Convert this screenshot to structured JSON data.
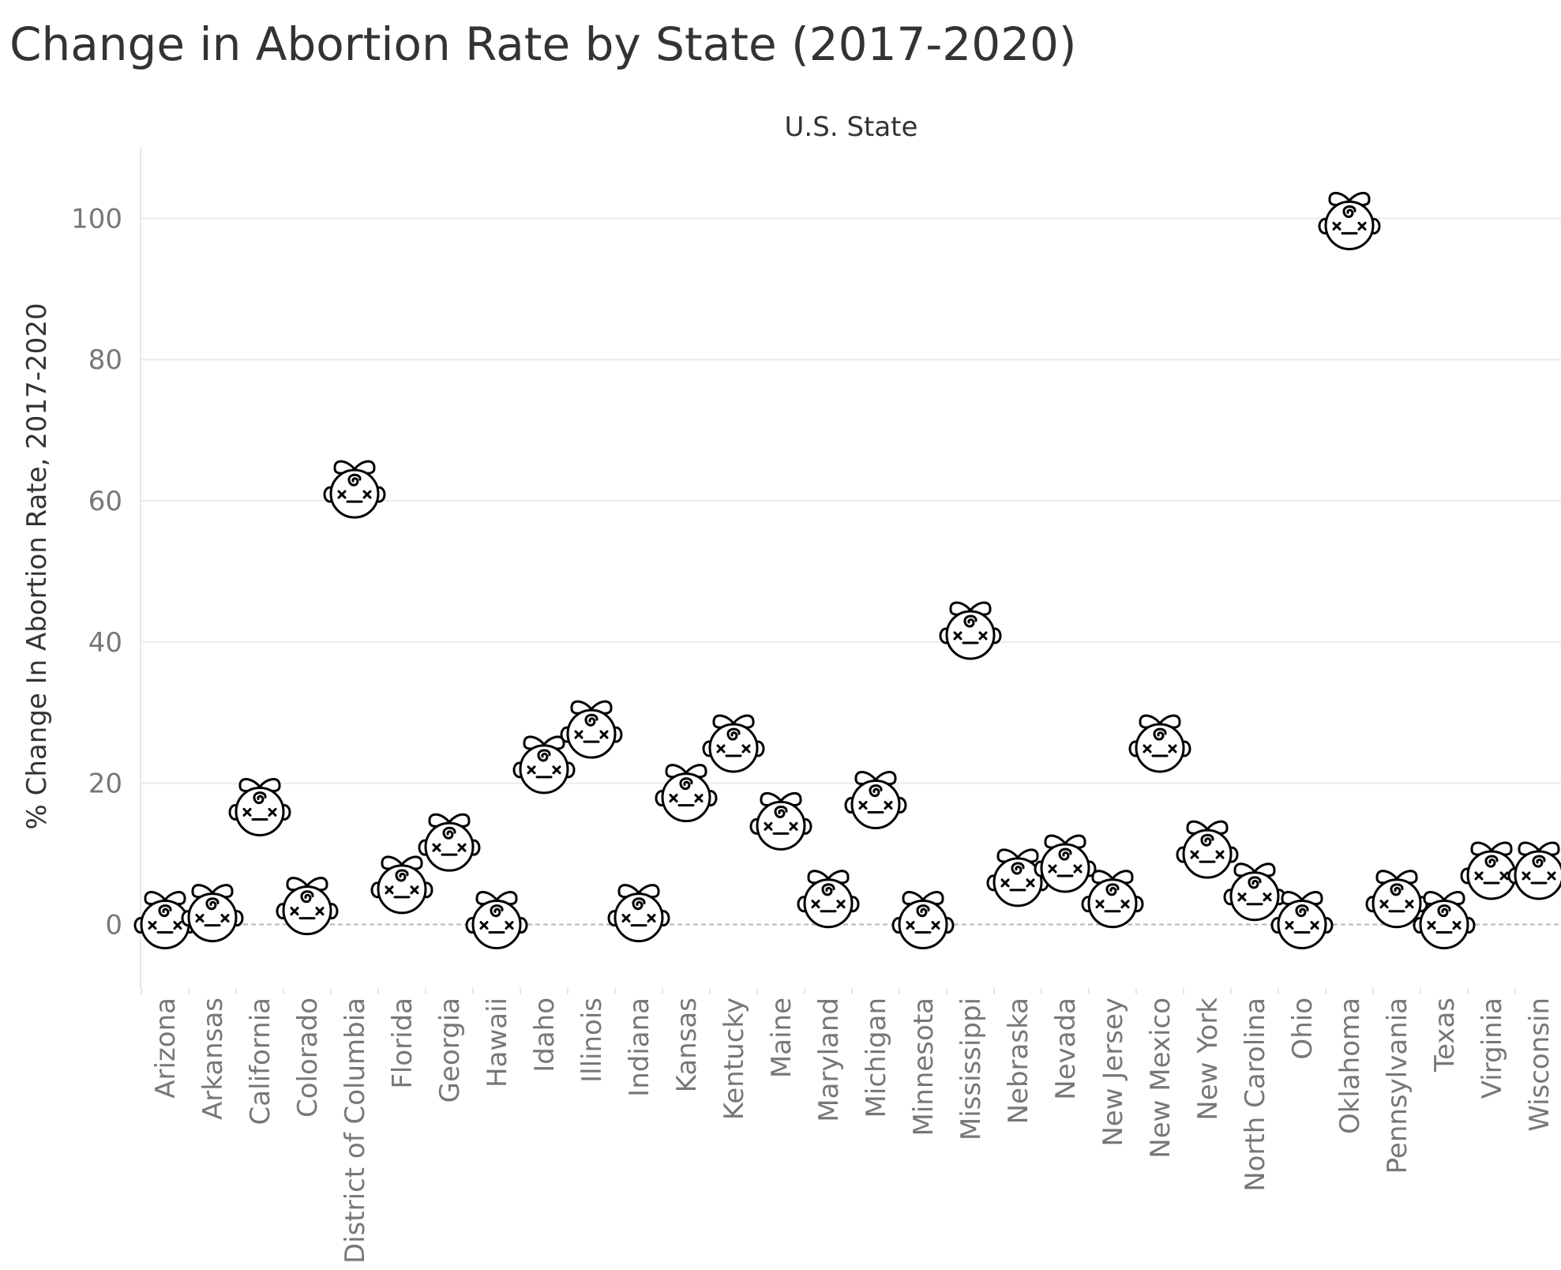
{
  "chart_data": {
    "type": "scatter",
    "title": "Change in Abortion Rate by State (2017-2020)",
    "xlabel": "U.S. State",
    "ylabel": "% Change In Abortion Rate, 2017-2020",
    "ylim": [
      -9,
      110
    ],
    "yticks": [
      0,
      20,
      40,
      60,
      80,
      100
    ],
    "grid": true,
    "marker": "baby-face-icon",
    "categories": [
      "Arizona",
      "Arkansas",
      "California",
      "Colorado",
      "District of Columbia",
      "Florida",
      "Georgia",
      "Hawaii",
      "Idaho",
      "Illinois",
      "Indiana",
      "Kansas",
      "Kentucky",
      "Maine",
      "Maryland",
      "Michigan",
      "Minnesota",
      "Mississippi",
      "Nebraska",
      "Nevada",
      "New Jersey",
      "New Mexico",
      "New York",
      "North Carolina",
      "Ohio",
      "Oklahoma",
      "Pennsylvania",
      "Texas",
      "Virginia",
      "Wisconsin"
    ],
    "values": [
      0,
      1,
      16,
      2,
      61,
      5,
      11,
      0,
      22,
      27,
      1,
      18,
      25,
      14,
      3,
      17,
      0,
      41,
      6,
      8,
      3,
      25,
      10,
      4,
      0,
      99,
      3,
      0,
      7,
      7
    ]
  }
}
